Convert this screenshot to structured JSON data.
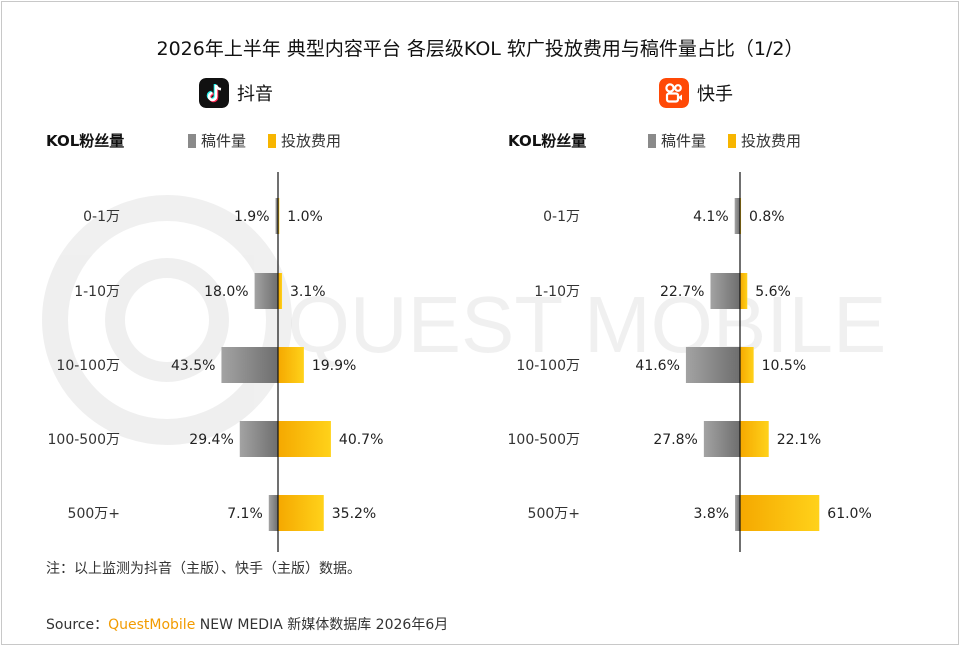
{
  "title": "2026年上半年 典型内容平台 各层级KOL 软广投放费用与稿件量占比（1/2）",
  "watermark": "QUEST MOBILE",
  "header": {
    "row_label": "KOL粉丝量",
    "legend_count": "稿件量",
    "legend_spend": "投放费用"
  },
  "colors": {
    "count": "#8a8a8a",
    "spend": "#f7b500",
    "brand": "#f29b00"
  },
  "chart_data": [
    {
      "type": "bar",
      "platform": "抖音",
      "logo_icon": "douyin-icon",
      "categories": [
        "0-1万",
        "1-10万",
        "10-100万",
        "100-500万",
        "500万+"
      ],
      "series": [
        {
          "name": "稿件量",
          "values": [
            1.9,
            18.0,
            43.5,
            29.4,
            7.1
          ],
          "labels": [
            "1.9%",
            "18.0%",
            "43.5%",
            "29.4%",
            "7.1%"
          ]
        },
        {
          "name": "投放费用",
          "values": [
            1.0,
            3.1,
            19.9,
            40.7,
            35.2
          ],
          "labels": [
            "1.0%",
            "3.1%",
            "19.9%",
            "40.7%",
            "35.2%"
          ]
        }
      ],
      "orientation": "horizontal-diverging",
      "xlim": [
        -100,
        100
      ]
    },
    {
      "type": "bar",
      "platform": "快手",
      "logo_icon": "kuaishou-icon",
      "categories": [
        "0-1万",
        "1-10万",
        "10-100万",
        "100-500万",
        "500万+"
      ],
      "series": [
        {
          "name": "稿件量",
          "values": [
            4.1,
            22.7,
            41.6,
            27.8,
            3.8
          ],
          "labels": [
            "4.1%",
            "22.7%",
            "41.6%",
            "27.8%",
            "3.8%"
          ]
        },
        {
          "name": "投放费用",
          "values": [
            0.8,
            5.6,
            10.5,
            22.1,
            61.0
          ],
          "labels": [
            "0.8%",
            "5.6%",
            "10.5%",
            "22.1%",
            "61.0%"
          ]
        }
      ],
      "orientation": "horizontal-diverging",
      "xlim": [
        -100,
        100
      ]
    }
  ],
  "note": "注：以上监测为抖音（主版）、快手（主版）数据。",
  "source": {
    "prefix": "Source：",
    "brand": "QuestMobile",
    "rest": " NEW MEDIA 新媒体数据库 2026年6月"
  }
}
